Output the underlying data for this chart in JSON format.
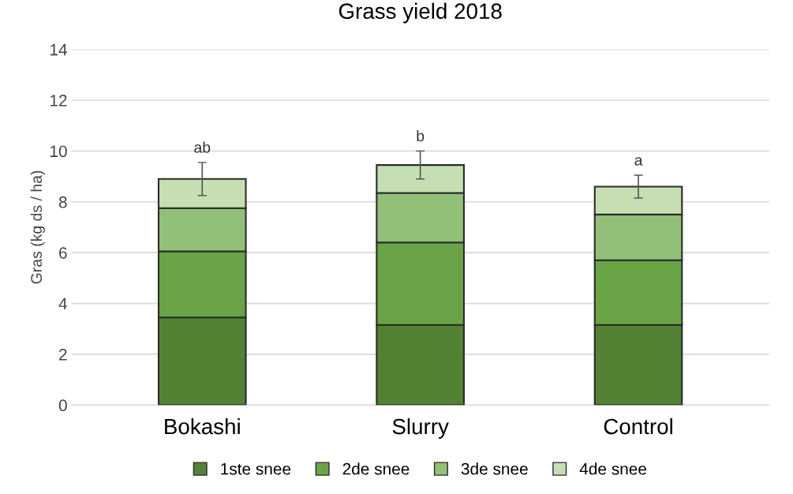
{
  "chart_data": {
    "type": "bar",
    "title": "Grass yield 2018",
    "ylabel": "Gras (kg ds / ha)",
    "categories": [
      "Bokashi",
      "Slurry",
      "Control"
    ],
    "stacked": true,
    "series": [
      {
        "name": "1ste snee",
        "color": "#548235",
        "values": [
          3.45,
          3.15,
          3.15
        ]
      },
      {
        "name": "2de snee",
        "color": "#6aa446",
        "values": [
          2.6,
          3.25,
          2.55
        ]
      },
      {
        "name": "3de snee",
        "color": "#93c078",
        "values": [
          1.7,
          1.95,
          1.8
        ]
      },
      {
        "name": "4de snee",
        "color": "#c5dfb3",
        "values": [
          1.15,
          1.1,
          1.1
        ],
        "errors": [
          0.65,
          0.55,
          0.45
        ]
      }
    ],
    "ylim": [
      0,
      14
    ],
    "yticks": [
      0,
      2,
      4,
      6,
      8,
      10,
      12,
      14
    ],
    "grid": "y",
    "legend": "bottom",
    "annotations": [
      "ab",
      "b",
      "a"
    ]
  }
}
